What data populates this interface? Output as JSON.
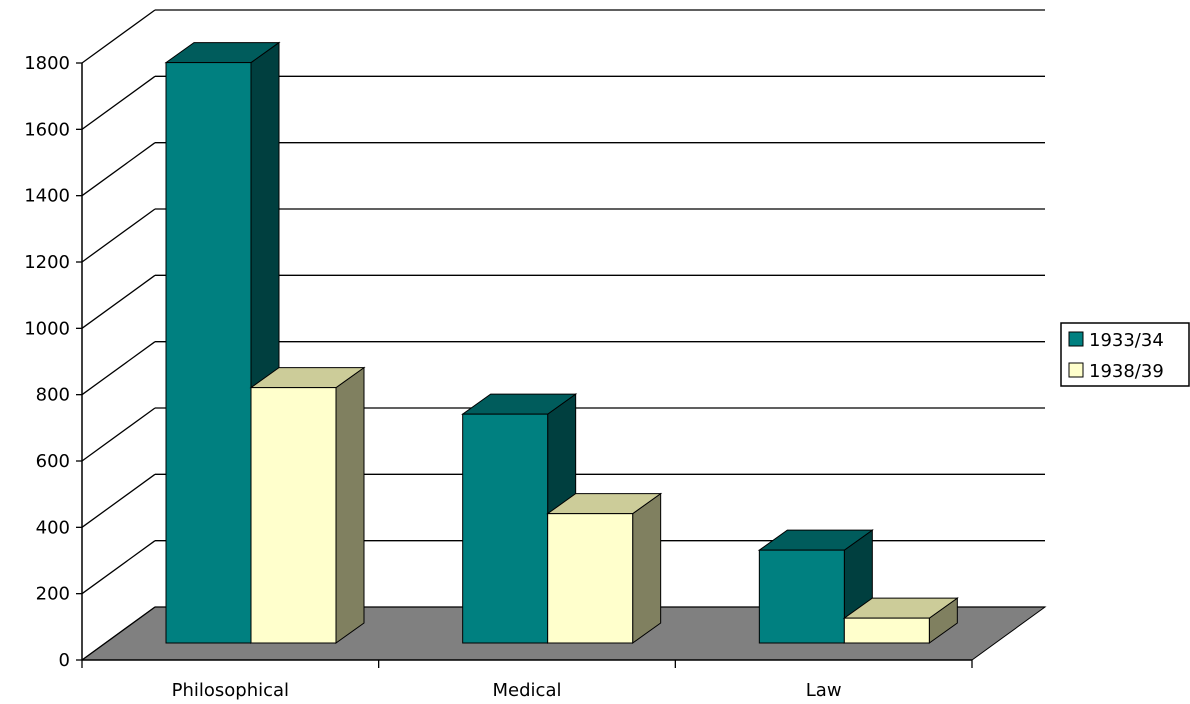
{
  "chart_data": {
    "type": "bar",
    "style": "3d-clustered-column",
    "categories": [
      "Philosophical",
      "Medical",
      "Law"
    ],
    "series": [
      {
        "name": "1933/34",
        "color": "#008080",
        "values": [
          1750,
          690,
          280
        ]
      },
      {
        "name": "1938/39",
        "color": "#ffffcc",
        "values": [
          770,
          390,
          75
        ]
      }
    ],
    "ylim": [
      0,
      1800
    ],
    "yticks": [
      "0",
      "200",
      "400",
      "600",
      "800",
      "1000",
      "1200",
      "1400",
      "1600",
      "1800"
    ],
    "grid": true,
    "legend_position": "right",
    "floor_color": "#808080"
  }
}
